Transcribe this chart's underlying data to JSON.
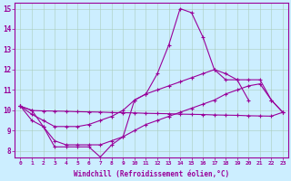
{
  "xlabel": "Windchill (Refroidissement éolien,°C)",
  "background_color": "#cceeff",
  "line_color": "#990099",
  "grid_color": "#aaccbb",
  "x_hours": [
    0,
    1,
    2,
    3,
    4,
    5,
    6,
    7,
    8,
    9,
    10,
    11,
    12,
    13,
    14,
    15,
    16,
    17,
    18,
    19,
    20,
    21,
    22,
    23
  ],
  "line_spike": [
    10.2,
    10.0,
    9.2,
    8.2,
    8.2,
    8.2,
    8.2,
    7.7,
    8.3,
    8.7,
    10.5,
    10.8,
    11.8,
    13.2,
    15.0,
    14.8,
    13.6,
    12.0,
    11.5,
    11.5,
    10.5,
    null,
    null,
    null
  ],
  "line_upper": [
    10.2,
    9.8,
    9.5,
    9.2,
    9.2,
    9.2,
    9.3,
    9.5,
    9.7,
    10.0,
    10.5,
    10.8,
    11.0,
    11.2,
    11.4,
    11.6,
    11.8,
    12.0,
    11.8,
    11.5,
    11.5,
    11.5,
    10.5,
    9.9
  ],
  "line_lower": [
    10.2,
    9.5,
    9.2,
    8.5,
    8.3,
    8.3,
    8.3,
    8.3,
    8.5,
    8.7,
    9.0,
    9.3,
    9.5,
    9.7,
    9.9,
    10.1,
    10.3,
    10.5,
    10.8,
    11.0,
    11.2,
    11.3,
    10.5,
    9.9
  ],
  "line_straight": [
    10.2,
    9.99,
    9.97,
    9.96,
    9.95,
    9.93,
    9.92,
    9.91,
    9.89,
    9.88,
    9.87,
    9.85,
    9.84,
    9.83,
    9.81,
    9.8,
    9.79,
    9.77,
    9.76,
    9.75,
    9.73,
    9.72,
    9.71,
    9.9
  ],
  "ylim": [
    7.7,
    15.3
  ],
  "yticks": [
    8,
    9,
    10,
    11,
    12,
    13,
    14,
    15
  ],
  "xlim": [
    -0.5,
    23.5
  ]
}
